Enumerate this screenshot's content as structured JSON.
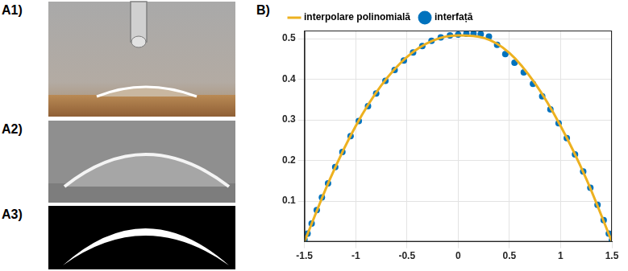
{
  "panel_labels": [
    "A1)",
    "A2)",
    "A3)",
    "B)"
  ],
  "chart_data": {
    "type": "scatter",
    "xlim": [
      -1.5,
      1.5
    ],
    "xticks": [
      -1.5,
      -1,
      -0.5,
      0,
      0.5,
      1,
      1.5
    ],
    "ylim": [
      0,
      0.52
    ],
    "yticks": [
      0.1,
      0.2,
      0.3,
      0.4,
      0.5
    ],
    "grid": true,
    "legend": "top",
    "series": [
      {
        "name": "interfață",
        "type": "scatter",
        "color": "#0072bd",
        "marker": "circle",
        "x": [
          -1.5,
          -1.47,
          -1.43,
          -1.38,
          -1.33,
          -1.27,
          -1.2,
          -1.13,
          -1.05,
          -0.97,
          -0.88,
          -0.8,
          -0.71,
          -0.62,
          -0.53,
          -0.44,
          -0.35,
          -0.26,
          -0.17,
          -0.08,
          0,
          0.08,
          0.15,
          0.22,
          0.3,
          0.38,
          0.46,
          0.55,
          0.64,
          0.73,
          0.82,
          0.9,
          0.98,
          1.06,
          1.14,
          1.22,
          1.29,
          1.36,
          1.42,
          1.47,
          1.5
        ],
        "values": [
          0.005,
          0.02,
          0.045,
          0.078,
          0.109,
          0.144,
          0.184,
          0.221,
          0.26,
          0.297,
          0.334,
          0.365,
          0.396,
          0.423,
          0.446,
          0.466,
          0.482,
          0.495,
          0.503,
          0.508,
          0.51,
          0.512,
          0.512,
          0.511,
          0.505,
          0.485,
          0.462,
          0.441,
          0.417,
          0.389,
          0.358,
          0.326,
          0.292,
          0.255,
          0.215,
          0.173,
          0.133,
          0.091,
          0.053,
          0.02,
          0.003
        ]
      },
      {
        "name": "interpolare polinomială",
        "type": "line",
        "color": "#edb120",
        "line_style": "solid",
        "x": [
          -1.5,
          -1.25,
          -1,
          -0.75,
          -0.5,
          -0.25,
          0,
          0.25,
          0.5,
          0.75,
          1,
          1.25,
          1.5
        ],
        "values": [
          0.0,
          0.155,
          0.285,
          0.385,
          0.455,
          0.495,
          0.508,
          0.502,
          0.465,
          0.39,
          0.285,
          0.155,
          0.0
        ]
      }
    ]
  }
}
